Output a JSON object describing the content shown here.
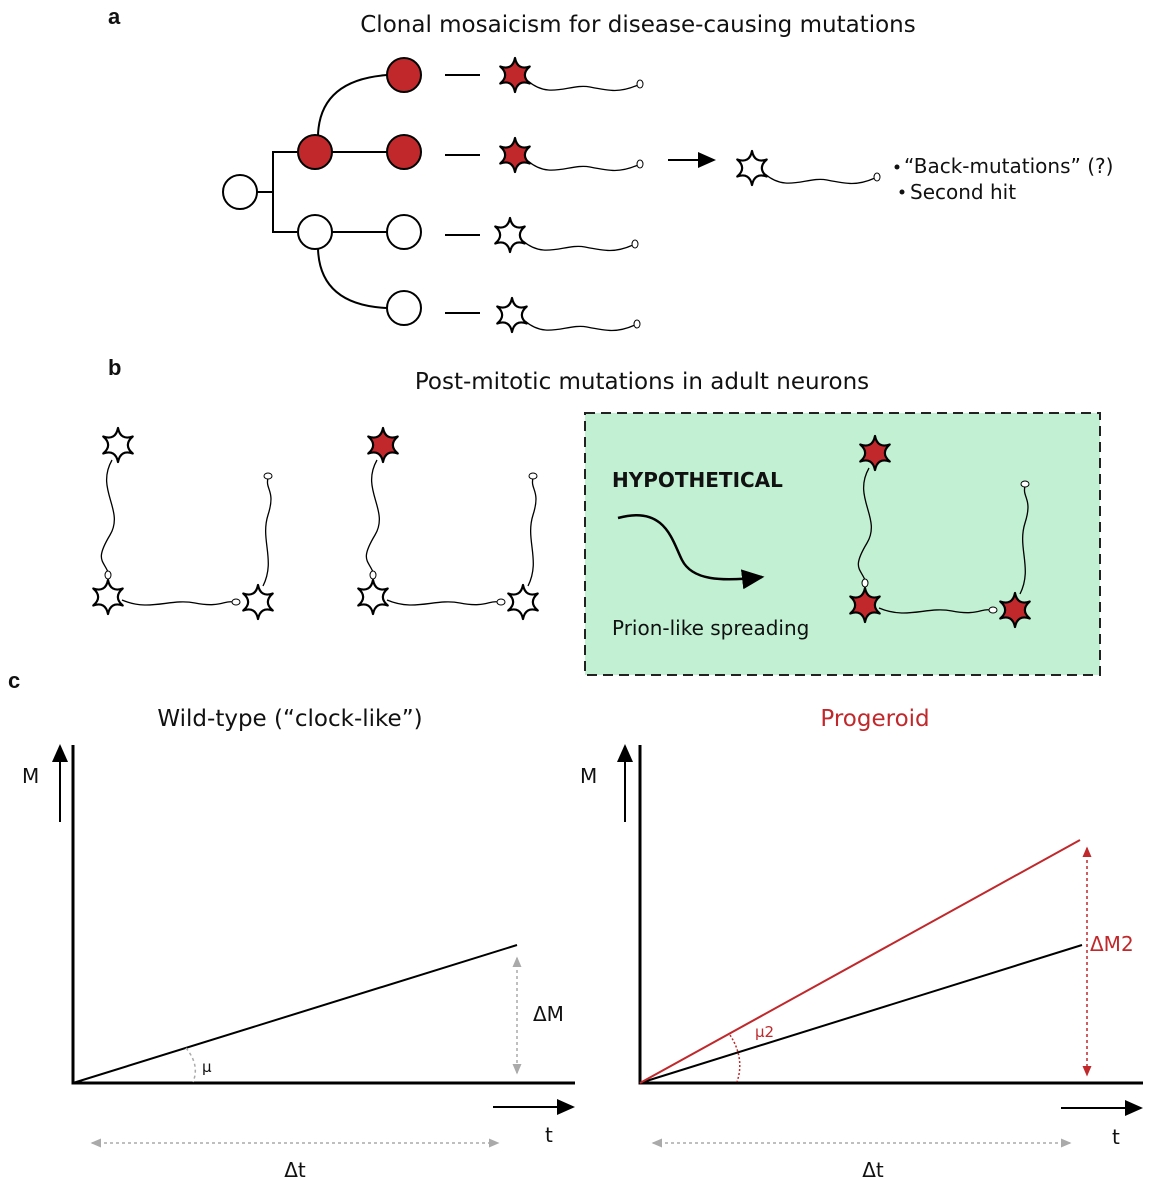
{
  "panel_a": {
    "label": "a",
    "title": "Clonal mosaicism for disease-causing mutations",
    "notes": [
      "“Back-mutations” (?)",
      "Second hit"
    ]
  },
  "panel_b": {
    "label": "b",
    "title": "Post-mitotic mutations in adult neurons",
    "box": {
      "heading": "HYPOTHETICAL",
      "caption": "Prion-like spreading"
    }
  },
  "panel_c": {
    "label": "c",
    "plots": [
      {
        "title": "Wild-type (“clock-like”)",
        "y_axis": "M",
        "x_axis": "t",
        "slope": "μ",
        "delta_y": "ΔM",
        "delta_x": "Δt"
      },
      {
        "title": "Progeroid",
        "y_axis": "M",
        "x_axis": "t",
        "slope": "μ2",
        "delta_y": "ΔM2",
        "delta_x": "Δt"
      }
    ]
  }
}
